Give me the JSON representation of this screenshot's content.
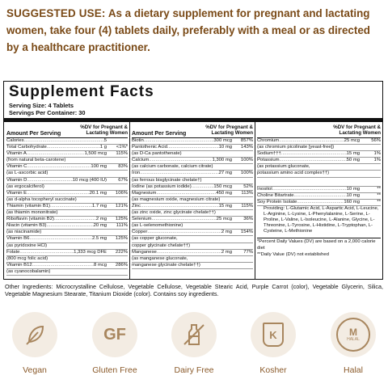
{
  "suggested_use": {
    "lead": "SUGGESTED USE:",
    "text": "As a dietary supplement for pregnant and lactating women, take four (4) tablets daily, preferably with a meal or as directed by a healthcare practitioner."
  },
  "facts": {
    "title": "Supplement Facts",
    "serving_size": "Serving Size: 4 Tablets",
    "servings_per_container": "Servings Per Container: 30",
    "header_amount": "Amount Per Serving",
    "header_dv": "%DV for Pregnant & Lactating Women",
    "col1": [
      {
        "name": "Calories",
        "amount": "5",
        "dv": ""
      },
      {
        "name": "Total Carbohydrate",
        "amount": "1 g",
        "dv": "<1%*"
      },
      {
        "name": "Vitamin A",
        "amount": "1,500 mcg",
        "dv": "115%"
      },
      {
        "sub": "(from natural beta-carotene)"
      },
      {
        "name": "Vitamin C",
        "amount": "100 mg",
        "dv": "83%"
      },
      {
        "sub": "(as L-ascorbic acid)"
      },
      {
        "name": "Vitamin D",
        "amount": "10 mcg (400 IU)",
        "dv": "67%"
      },
      {
        "sub": "(as ergocalciferol)"
      },
      {
        "name": "Vitamin E",
        "amount": "20.1 mg",
        "dv": "106%"
      },
      {
        "sub": "(as d-alpha tocopheryl succinate)"
      },
      {
        "name": "Thiamin (vitamin B1)",
        "amount": "1.7 mg",
        "dv": "121%"
      },
      {
        "sub": "(as thiamin mononitrate)"
      },
      {
        "name": "Riboflavin (vitamin B2)",
        "amount": "2 mg",
        "dv": "125%"
      },
      {
        "name": "Niacin (vitamin B3)",
        "amount": "20 mg",
        "dv": "111%"
      },
      {
        "sub": "(as niacinamide)"
      },
      {
        "name": "Vitamin B6",
        "amount": "2.5 mg",
        "dv": "125%"
      },
      {
        "sub": "(as pyridoxine HCl)"
      },
      {
        "name": "Folate",
        "amount": "1,333 mcg DFE",
        "dv": "222%"
      },
      {
        "sub": "(800 mcg folic acid)"
      },
      {
        "name": "Vitamin B12",
        "amount": "8 mcg",
        "dv": "286%"
      },
      {
        "sub": "(as cyanocobalamin)"
      }
    ],
    "col2": [
      {
        "name": "Biotin",
        "amount": "300 mcg",
        "dv": "857%"
      },
      {
        "name": "Pantothenic Acid",
        "amount": "10 mg",
        "dv": "143%"
      },
      {
        "sub": "(as D-Ca pantothenate)"
      },
      {
        "name": "Calcium",
        "amount": "1,300 mg",
        "dv": "100%"
      },
      {
        "sub": "(as calcium carbonate, calcium citrate)"
      },
      {
        "name": "Iron",
        "amount": "27 mg",
        "dv": "100%"
      },
      {
        "sub": "(as ferrous bisglycinate chelate†)"
      },
      {
        "name": "Iodine (as potassium iodide)",
        "amount": "150 mcg",
        "dv": "52%"
      },
      {
        "name": "Magnesium",
        "amount": "450 mg",
        "dv": "113%"
      },
      {
        "sub": "(as magnesium oxide, magnesium citrate)"
      },
      {
        "name": "Zinc",
        "amount": "15 mg",
        "dv": "115%"
      },
      {
        "sub": "(as zinc oxide, zinc glycinate chelate††)"
      },
      {
        "name": "Selenium",
        "amount": "25 mcg",
        "dv": "36%"
      },
      {
        "sub": "(as L-selenomethionine)"
      },
      {
        "name": "Copper",
        "amount": "2 mg",
        "dv": "154%"
      },
      {
        "sub": "(as copper gluconate,"
      },
      {
        "sub": "copper glycinate chelate††)"
      },
      {
        "name": "Manganese",
        "amount": "2 mg",
        "dv": "77%"
      },
      {
        "sub": "(as manganese gluconate,"
      },
      {
        "sub": "manganese glycinate chelate††)"
      }
    ],
    "col3a": [
      {
        "name": "Chromium",
        "amount": "25 mcg",
        "dv": "56%"
      },
      {
        "sub": "(as chromium picolinate [yeast-free])"
      },
      {
        "name": "Sodium†††",
        "amount": "15 mg",
        "dv": "1%"
      },
      {
        "name": "Potassium",
        "amount": "50 mg",
        "dv": "1%"
      },
      {
        "sub": "(as potassium gluconate,"
      },
      {
        "sub": "potassium amino acid complex††)"
      }
    ],
    "col3b": [
      {
        "name": "Inositol",
        "amount": "10 mg",
        "dv": "**"
      },
      {
        "name": "Choline Bitartrate",
        "amount": "10 mg",
        "dv": "**"
      },
      {
        "name": "Soy Protein Isolate",
        "amount": "160 mg",
        "dv": "**"
      }
    ],
    "providing": "Providing: L-Glutamic Acid, L-Aspartic Acid, L-Leucine, L-Arginine, L-Lysine, L-Phenylalanine, L-Serine, L-Proline, L-Valine, L-Isoleucine, L-Alanine, Glycine, L-Threonine, L-Tyrosine, L-Histidine, L-Tryptophan, L-Cysteine, L-Methionine",
    "footnote1": "*Percent Daily Values (DV) are based on a 2,000 calorie diet",
    "footnote2": "**Daily Value (DV) not established"
  },
  "other_ingredients": "Other Ingredients: Microcrystalline Cellulose, Vegetable Cellulose, Vegetable Stearic Acid, Purple Carrot (color), Vegetable Glycerin, Silica, Vegetable Magnesium Stearate, Titanium Dioxide (color). Contains soy ingredients.",
  "badges": [
    {
      "label": "Vegan",
      "icon": "leaf-icon"
    },
    {
      "label": "Gluten Free",
      "icon": "gf-icon",
      "text": "GF"
    },
    {
      "label": "Dairy Free",
      "icon": "milk-bottle-icon"
    },
    {
      "label": "Kosher",
      "icon": "kosher-k-icon",
      "text": "K"
    },
    {
      "label": "Halal",
      "icon": "halal-seal-icon",
      "text": "M",
      "subtext": "HALAL"
    }
  ],
  "colors": {
    "accent": "#7a4a17",
    "badge_bg": "#f3ece3",
    "icon": "#a8865e"
  }
}
